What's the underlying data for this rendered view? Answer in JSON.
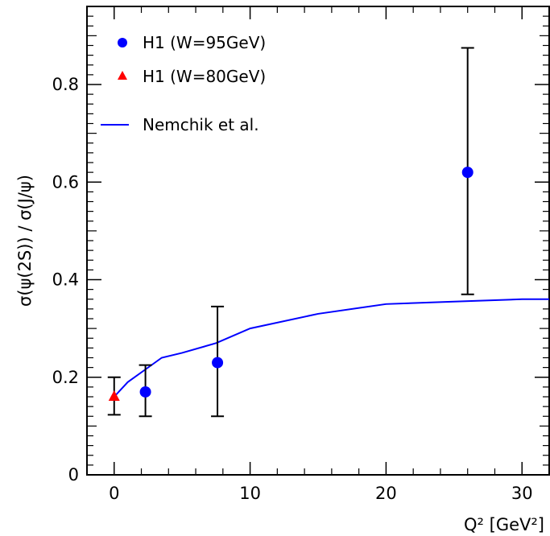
{
  "chart_data": {
    "type": "scatter",
    "xlabel": "Q² [GeV²]",
    "ylabel": "σ(ψ(2S)) / σ(J/ψ)",
    "xlim": [
      -2,
      32
    ],
    "ylim": [
      0,
      0.96
    ],
    "x_ticks": [
      0,
      10,
      20,
      30
    ],
    "x_tick_labels": [
      "0",
      "10",
      "20",
      "30"
    ],
    "y_ticks": [
      0,
      0.2,
      0.4,
      0.6,
      0.8
    ],
    "y_tick_labels": [
      "0",
      "0.2",
      "0.4",
      "0.6",
      "0.8"
    ],
    "grid": false,
    "legend_position": "top-left",
    "series": [
      {
        "name": "H1 (W=95GeV)",
        "marker": "circle",
        "color": "#0000ff",
        "x": [
          2.3,
          7.6,
          26
        ],
        "y": [
          0.17,
          0.23,
          0.62
        ],
        "y_err_low": [
          0.12,
          0.12,
          0.37
        ],
        "y_err_high": [
          0.225,
          0.345,
          0.875
        ]
      },
      {
        "name": "H1 (W=80GeV)",
        "marker": "triangle",
        "color": "#ff0000",
        "x": [
          0
        ],
        "y": [
          0.16
        ],
        "y_err_low": [
          0.123
        ],
        "y_err_high": [
          0.2
        ]
      },
      {
        "name": "Nemchik et al.",
        "marker": "line",
        "color": "#0000ff",
        "x": [
          0,
          1,
          2.5,
          3.5,
          5,
          7.5,
          10,
          15,
          20,
          25,
          30,
          32
        ],
        "y": [
          0.16,
          0.19,
          0.22,
          0.24,
          0.25,
          0.27,
          0.3,
          0.33,
          0.35,
          0.355,
          0.36,
          0.36
        ]
      }
    ]
  }
}
